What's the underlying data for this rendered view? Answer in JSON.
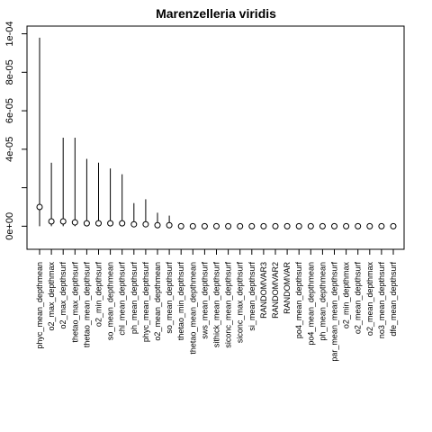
{
  "chart_data": {
    "type": "scatter",
    "title": "Marenzelleria viridis",
    "xlabel": "",
    "ylabel": "",
    "ylim": [
      -1.2e-05,
      0.000104
    ],
    "yticks": [
      0,
      2e-05,
      4e-05,
      6e-05,
      8e-05,
      0.0001
    ],
    "ytick_labels": [
      "0e+00",
      "",
      "4e-05",
      "6e-05",
      "8e-05",
      "1e-04"
    ],
    "style": "points with vertical range lines",
    "categories": [
      "phyc_mean_depthmean",
      "o2_max_depthmax",
      "o2_max_depthsurf",
      "thetao_max_depthsurf",
      "thetao_mean_depthsurf",
      "o2_min_depthsurf",
      "so_mean_depthmean",
      "chl_mean_depthsurf",
      "ph_mean_depthsurf",
      "phyc_mean_depthsurf",
      "o2_mean_depthmean",
      "so_mean_depthsurf",
      "thetao_min_depthsurf",
      "thetao_mean_depthmean",
      "sws_mean_depthsurf",
      "sithick_mean_depthsurf",
      "siconc_mean_depthsurf",
      "siconc_max_depthsurf",
      "si_mean_depthsurf",
      "RANDOMVAR3",
      "RANDOMVAR2",
      "RANDOMVAR",
      "po4_mean_depthsurf",
      "po4_mean_depthmean",
      "ph_mean_depthmean",
      "par_mean_mean_depthsurf",
      "o2_min_depthmax",
      "o2_mean_depthsurf",
      "o2_mean_depthmax",
      "no3_mean_depthsurf",
      "dfe_mean_depthsurf"
    ],
    "series": [
      {
        "values": [
          1e-05,
          2.5e-06,
          2.5e-06,
          2e-06,
          1.5e-06,
          1.5e-06,
          1.5e-06,
          1.5e-06,
          1e-06,
          1e-06,
          5e-07,
          5e-07,
          0,
          0,
          0,
          0,
          0,
          0,
          0,
          0,
          0,
          0,
          0,
          0,
          0,
          0,
          0,
          0,
          0,
          0,
          0
        ],
        "upper": [
          9.8e-05,
          3.3e-05,
          4.6e-05,
          4.6e-05,
          3.5e-05,
          3.3e-05,
          3e-05,
          2.7e-05,
          1.2e-05,
          1.4e-05,
          7e-06,
          5.5e-06,
          0,
          0,
          0,
          0,
          0,
          0,
          0,
          0,
          0,
          0,
          0,
          0,
          0,
          0,
          0,
          0,
          0,
          0,
          0
        ]
      }
    ]
  }
}
